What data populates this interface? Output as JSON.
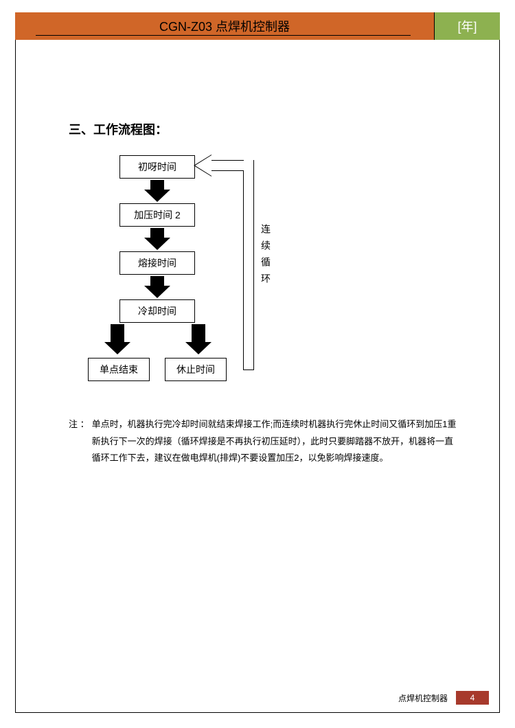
{
  "header": {
    "title": "CGN-Z03 点焊机控制器",
    "tag": "[年]"
  },
  "section": {
    "title": "三、工作流程图："
  },
  "flowchart": {
    "boxes": {
      "b1": "初呀时间",
      "b2": "加压时间 2",
      "b3": "熔接时间",
      "b4": "冷却时间",
      "b5": "单点结束",
      "b6": "休止时间"
    },
    "loop_label": "连续循环",
    "box_border_color": "#000000",
    "arrow_color": "#000000",
    "font_size": 14
  },
  "note": {
    "prefix": "注 ：",
    "text": "单点时，机器执行完冷却时间就结束焊接工作;而连续时机器执行完休止时间又循环到加压1重新执行下一次的焊接（循环焊接是不再执行初压延时），此时只要脚踏器不放开，机器将一直循环工作下去，建议在做电焊机(排焊)不要设置加压2，以免影响焊接速度。"
  },
  "footer": {
    "label": "点焊机控制器",
    "page": "4"
  },
  "colors": {
    "header_bg": "#d06628",
    "tag_bg": "#8db150",
    "footer_pagenum_bg": "#a73a2c"
  }
}
